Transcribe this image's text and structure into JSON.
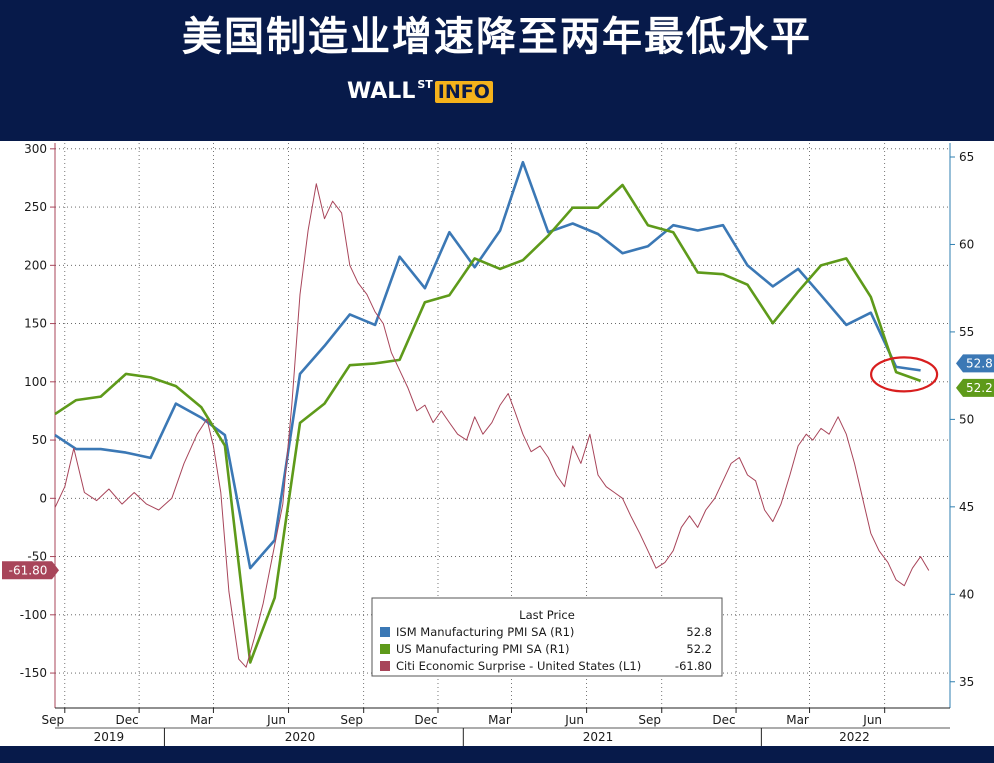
{
  "header": {
    "title": "美国制造业增速降至两年最低水平",
    "brand_wall": "WALL",
    "brand_st": "ST",
    "brand_info": "INFO"
  },
  "chart_data": {
    "type": "line",
    "title": "美国制造业增速降至两年最低水平",
    "x_range": [
      "2019-08-20",
      "2022-08-20"
    ],
    "left_axis": {
      "ylim": [
        -180,
        305
      ],
      "ticks": [
        300,
        250,
        200,
        150,
        100,
        50,
        0,
        -50,
        -100,
        -150
      ]
    },
    "right_axis": {
      "ylim": [
        33.5,
        65.8
      ],
      "ticks": [
        65,
        60,
        55,
        50,
        45,
        40,
        35
      ]
    },
    "x_tick_labels": [
      {
        "label": "Sep",
        "date": "2019-09-01"
      },
      {
        "label": "Dec",
        "date": "2019-12-01"
      },
      {
        "label": "Mar",
        "date": "2020-03-01"
      },
      {
        "label": "Jun",
        "date": "2020-06-01"
      },
      {
        "label": "Sep",
        "date": "2020-09-01"
      },
      {
        "label": "Dec",
        "date": "2020-12-01"
      },
      {
        "label": "Mar",
        "date": "2021-03-01"
      },
      {
        "label": "Jun",
        "date": "2021-06-01"
      },
      {
        "label": "Sep",
        "date": "2021-09-01"
      },
      {
        "label": "Dec",
        "date": "2021-12-01"
      },
      {
        "label": "Mar",
        "date": "2022-03-01"
      },
      {
        "label": "Jun",
        "date": "2022-06-01"
      }
    ],
    "year_labels": [
      {
        "label": "2019",
        "date": "2019-10-25"
      },
      {
        "label": "2020",
        "date": "2020-06-15"
      },
      {
        "label": "2021",
        "date": "2021-06-15"
      },
      {
        "label": "2022",
        "date": "2022-04-25"
      }
    ],
    "grid": true,
    "legend": {
      "title": "Last Price",
      "placement": "bottom-center",
      "entries": [
        {
          "series": "ism",
          "label": "ISM Manufacturing PMI SA  (R1)",
          "value": "52.8"
        },
        {
          "series": "us",
          "label": "US Manufacturing PMI SA  (R1)",
          "value": "52.2"
        },
        {
          "series": "citi",
          "label": "Citi Economic Surprise - United States  (L1)",
          "value": "-61.80"
        }
      ]
    },
    "last_value_tags": {
      "citi": "-61.80",
      "ism": "52.8",
      "us": "52.2"
    },
    "series": [
      {
        "key": "ism",
        "name": "ISM Manufacturing PMI SA",
        "axis": "right",
        "color": "#3b78b5",
        "points": [
          [
            "2019-08-20",
            49.1
          ],
          [
            "2019-09-15",
            48.3
          ],
          [
            "2019-10-15",
            48.3
          ],
          [
            "2019-11-15",
            48.1
          ],
          [
            "2019-12-15",
            47.8
          ],
          [
            "2020-01-15",
            50.9
          ],
          [
            "2020-02-15",
            50.1
          ],
          [
            "2020-03-15",
            49.1
          ],
          [
            "2020-04-15",
            41.5
          ],
          [
            "2020-05-15",
            43.1
          ],
          [
            "2020-06-15",
            52.6
          ],
          [
            "2020-07-15",
            54.2
          ],
          [
            "2020-08-15",
            56.0
          ],
          [
            "2020-09-15",
            55.4
          ],
          [
            "2020-10-15",
            59.3
          ],
          [
            "2020-11-15",
            57.5
          ],
          [
            "2020-12-15",
            60.7
          ],
          [
            "2021-01-15",
            58.7
          ],
          [
            "2021-02-15",
            60.8
          ],
          [
            "2021-03-15",
            64.7
          ],
          [
            "2021-04-15",
            60.7
          ],
          [
            "2021-05-15",
            61.2
          ],
          [
            "2021-06-15",
            60.6
          ],
          [
            "2021-07-15",
            59.5
          ],
          [
            "2021-08-15",
            59.9
          ],
          [
            "2021-09-15",
            61.1
          ],
          [
            "2021-10-15",
            60.8
          ],
          [
            "2021-11-15",
            61.1
          ],
          [
            "2021-12-15",
            58.8
          ],
          [
            "2022-01-15",
            57.6
          ],
          [
            "2022-02-15",
            58.6
          ],
          [
            "2022-03-15",
            57.1
          ],
          [
            "2022-04-15",
            55.4
          ],
          [
            "2022-05-15",
            56.1
          ],
          [
            "2022-06-15",
            53.0
          ],
          [
            "2022-07-15",
            52.8
          ]
        ]
      },
      {
        "key": "us",
        "name": "US Manufacturing PMI SA",
        "axis": "right",
        "color": "#5e9a1a",
        "points": [
          [
            "2019-08-20",
            50.3
          ],
          [
            "2019-09-15",
            51.1
          ],
          [
            "2019-10-15",
            51.3
          ],
          [
            "2019-11-15",
            52.6
          ],
          [
            "2019-12-15",
            52.4
          ],
          [
            "2020-01-15",
            51.9
          ],
          [
            "2020-02-15",
            50.7
          ],
          [
            "2020-03-15",
            48.5
          ],
          [
            "2020-04-15",
            36.1
          ],
          [
            "2020-05-15",
            39.8
          ],
          [
            "2020-06-15",
            49.8
          ],
          [
            "2020-07-15",
            50.9
          ],
          [
            "2020-08-15",
            53.1
          ],
          [
            "2020-09-15",
            53.2
          ],
          [
            "2020-10-15",
            53.4
          ],
          [
            "2020-11-15",
            56.7
          ],
          [
            "2020-12-15",
            57.1
          ],
          [
            "2021-01-15",
            59.2
          ],
          [
            "2021-02-15",
            58.6
          ],
          [
            "2021-03-15",
            59.1
          ],
          [
            "2021-04-15",
            60.5
          ],
          [
            "2021-05-15",
            62.1
          ],
          [
            "2021-06-15",
            62.1
          ],
          [
            "2021-07-15",
            63.4
          ],
          [
            "2021-08-15",
            61.1
          ],
          [
            "2021-09-15",
            60.7
          ],
          [
            "2021-10-15",
            58.4
          ],
          [
            "2021-11-15",
            58.3
          ],
          [
            "2021-12-15",
            57.7
          ],
          [
            "2022-01-15",
            55.5
          ],
          [
            "2022-02-15",
            57.3
          ],
          [
            "2022-03-15",
            58.8
          ],
          [
            "2022-04-15",
            59.2
          ],
          [
            "2022-05-15",
            57.0
          ],
          [
            "2022-06-15",
            52.7
          ],
          [
            "2022-07-15",
            52.2
          ]
        ]
      },
      {
        "key": "citi",
        "name": "Citi Economic Surprise - United States",
        "axis": "left",
        "color": "#a8455a",
        "points": [
          [
            "2019-08-20",
            -8
          ],
          [
            "2019-09-01",
            10
          ],
          [
            "2019-09-12",
            43
          ],
          [
            "2019-09-25",
            5
          ],
          [
            "2019-10-10",
            -2
          ],
          [
            "2019-10-25",
            8
          ],
          [
            "2019-11-10",
            -5
          ],
          [
            "2019-11-25",
            5
          ],
          [
            "2019-12-10",
            -5
          ],
          [
            "2019-12-25",
            -10
          ],
          [
            "2020-01-10",
            0
          ],
          [
            "2020-01-25",
            30
          ],
          [
            "2020-02-10",
            55
          ],
          [
            "2020-02-22",
            68
          ],
          [
            "2020-03-01",
            45
          ],
          [
            "2020-03-10",
            5
          ],
          [
            "2020-03-20",
            -80
          ],
          [
            "2020-04-01",
            -138
          ],
          [
            "2020-04-10",
            -145
          ],
          [
            "2020-04-20",
            -120
          ],
          [
            "2020-05-01",
            -90
          ],
          [
            "2020-05-15",
            -40
          ],
          [
            "2020-05-25",
            -5
          ],
          [
            "2020-06-05",
            80
          ],
          [
            "2020-06-15",
            175
          ],
          [
            "2020-06-25",
            230
          ],
          [
            "2020-07-05",
            270
          ],
          [
            "2020-07-15",
            240
          ],
          [
            "2020-07-25",
            255
          ],
          [
            "2020-08-05",
            245
          ],
          [
            "2020-08-15",
            200
          ],
          [
            "2020-08-25",
            185
          ],
          [
            "2020-09-05",
            175
          ],
          [
            "2020-09-15",
            160
          ],
          [
            "2020-09-25",
            150
          ],
          [
            "2020-10-05",
            125
          ],
          [
            "2020-10-15",
            110
          ],
          [
            "2020-10-25",
            95
          ],
          [
            "2020-11-05",
            75
          ],
          [
            "2020-11-15",
            80
          ],
          [
            "2020-11-25",
            65
          ],
          [
            "2020-12-05",
            75
          ],
          [
            "2020-12-15",
            65
          ],
          [
            "2020-12-25",
            55
          ],
          [
            "2021-01-05",
            50
          ],
          [
            "2021-01-15",
            70
          ],
          [
            "2021-01-25",
            55
          ],
          [
            "2021-02-05",
            65
          ],
          [
            "2021-02-15",
            80
          ],
          [
            "2021-02-25",
            90
          ],
          [
            "2021-03-05",
            75
          ],
          [
            "2021-03-15",
            55
          ],
          [
            "2021-03-25",
            40
          ],
          [
            "2021-04-05",
            45
          ],
          [
            "2021-04-15",
            35
          ],
          [
            "2021-04-25",
            20
          ],
          [
            "2021-05-05",
            10
          ],
          [
            "2021-05-15",
            45
          ],
          [
            "2021-05-25",
            30
          ],
          [
            "2021-06-05",
            55
          ],
          [
            "2021-06-15",
            20
          ],
          [
            "2021-06-25",
            10
          ],
          [
            "2021-07-05",
            5
          ],
          [
            "2021-07-15",
            0
          ],
          [
            "2021-07-25",
            -15
          ],
          [
            "2021-08-05",
            -30
          ],
          [
            "2021-08-15",
            -45
          ],
          [
            "2021-08-25",
            -60
          ],
          [
            "2021-09-05",
            -55
          ],
          [
            "2021-09-15",
            -45
          ],
          [
            "2021-09-25",
            -25
          ],
          [
            "2021-10-05",
            -15
          ],
          [
            "2021-10-15",
            -25
          ],
          [
            "2021-10-25",
            -10
          ],
          [
            "2021-11-05",
            0
          ],
          [
            "2021-11-15",
            15
          ],
          [
            "2021-11-25",
            30
          ],
          [
            "2021-12-05",
            35
          ],
          [
            "2021-12-15",
            20
          ],
          [
            "2021-12-25",
            15
          ],
          [
            "2022-01-05",
            -10
          ],
          [
            "2022-01-15",
            -20
          ],
          [
            "2022-01-25",
            -5
          ],
          [
            "2022-02-05",
            20
          ],
          [
            "2022-02-15",
            45
          ],
          [
            "2022-02-25",
            55
          ],
          [
            "2022-03-05",
            50
          ],
          [
            "2022-03-15",
            60
          ],
          [
            "2022-03-25",
            55
          ],
          [
            "2022-04-05",
            70
          ],
          [
            "2022-04-15",
            55
          ],
          [
            "2022-04-25",
            30
          ],
          [
            "2022-05-05",
            0
          ],
          [
            "2022-05-15",
            -30
          ],
          [
            "2022-05-25",
            -45
          ],
          [
            "2022-06-05",
            -55
          ],
          [
            "2022-06-15",
            -70
          ],
          [
            "2022-06-25",
            -75
          ],
          [
            "2022-07-05",
            -60
          ],
          [
            "2022-07-15",
            -50
          ],
          [
            "2022-07-25",
            -62
          ]
        ]
      }
    ]
  }
}
